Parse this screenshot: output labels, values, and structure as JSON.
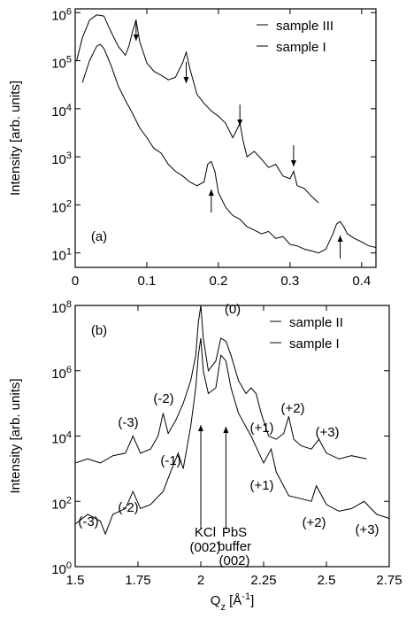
{
  "chart_data": [
    {
      "type": "line",
      "ylabel": "Intensity [arb. units]",
      "log_y": true,
      "legend": "top-right",
      "xlim": [
        0,
        0.42
      ],
      "xticks": [
        0,
        0.1,
        0.2,
        0.3,
        0.4
      ],
      "ylim": [
        5,
        1200000
      ],
      "yticks": [
        {
          "value": 10,
          "label": "10^1"
        },
        {
          "value": 100,
          "label": "10^2"
        },
        {
          "value": 1000,
          "label": "10^3"
        },
        {
          "value": 10000,
          "label": "10^4"
        },
        {
          "value": 100000,
          "label": "10^5"
        },
        {
          "value": 1000000,
          "label": "10^6"
        }
      ],
      "series": [
        {
          "name": "sample III",
          "color": "#000000",
          "x": [
            0.002,
            0.01,
            0.02,
            0.03,
            0.04,
            0.05,
            0.06,
            0.07,
            0.075,
            0.08,
            0.085,
            0.09,
            0.1,
            0.11,
            0.12,
            0.13,
            0.14,
            0.15,
            0.155,
            0.16,
            0.17,
            0.18,
            0.19,
            0.2,
            0.21,
            0.22,
            0.225,
            0.23,
            0.235,
            0.24,
            0.25,
            0.26,
            0.27,
            0.28,
            0.29,
            0.3,
            0.305,
            0.31,
            0.32,
            0.33,
            0.34
          ],
          "values": [
            100000,
            300000,
            700000,
            900000,
            850000,
            400000,
            200000,
            130000,
            200000,
            400000,
            700000,
            250000,
            90000,
            60000,
            50000,
            40000,
            45000,
            90000,
            150000,
            70000,
            20000,
            13000,
            9000,
            7000,
            5000,
            2500,
            3500,
            5000,
            2000,
            1000,
            1300,
            900,
            600,
            700,
            400,
            350,
            500,
            250,
            220,
            150,
            110
          ]
        },
        {
          "name": "sample I",
          "color": "#000000",
          "x": [
            0.01,
            0.02,
            0.03,
            0.035,
            0.04,
            0.05,
            0.06,
            0.07,
            0.08,
            0.09,
            0.1,
            0.11,
            0.12,
            0.13,
            0.14,
            0.15,
            0.16,
            0.17,
            0.18,
            0.185,
            0.19,
            0.195,
            0.2,
            0.21,
            0.22,
            0.23,
            0.24,
            0.25,
            0.26,
            0.27,
            0.28,
            0.29,
            0.3,
            0.31,
            0.32,
            0.33,
            0.34,
            0.35,
            0.36,
            0.365,
            0.37,
            0.375,
            0.38,
            0.39,
            0.4,
            0.41,
            0.42
          ],
          "values": [
            35000,
            100000,
            200000,
            220000,
            180000,
            80000,
            30000,
            15000,
            8000,
            4000,
            2500,
            1500,
            1200,
            700,
            500,
            400,
            300,
            250,
            300,
            700,
            800,
            500,
            180,
            90,
            60,
            50,
            35,
            30,
            25,
            28,
            20,
            22,
            15,
            14,
            12,
            11,
            10,
            12,
            25,
            40,
            45,
            35,
            25,
            20,
            17,
            14,
            13
          ]
        }
      ],
      "annotations": [
        "(a)"
      ]
    },
    {
      "type": "line",
      "xlabel": "Q_z [Å^-1]",
      "ylabel": "Intensity [arb. units]",
      "log_y": true,
      "legend": "top-right",
      "xlim": [
        1.5,
        2.75
      ],
      "xticks": [
        1.5,
        1.75,
        2,
        2.25,
        2.5,
        2.75
      ],
      "ylim": [
        1,
        100000000
      ],
      "yticks": [
        {
          "value": 1,
          "label": "10^0"
        },
        {
          "value": 100,
          "label": "10^2"
        },
        {
          "value": 10000,
          "label": "10^4"
        },
        {
          "value": 1000000,
          "label": "10^6"
        },
        {
          "value": 100000000,
          "label": "10^8"
        }
      ],
      "series": [
        {
          "name": "sample II",
          "color": "#000000",
          "x": [
            1.5,
            1.55,
            1.6,
            1.65,
            1.7,
            1.73,
            1.76,
            1.8,
            1.83,
            1.85,
            1.87,
            1.9,
            1.93,
            1.96,
            1.98,
            1.99,
            2.0,
            2.01,
            2.03,
            2.06,
            2.08,
            2.1,
            2.12,
            2.15,
            2.18,
            2.2,
            2.22,
            2.24,
            2.27,
            2.3,
            2.33,
            2.35,
            2.37,
            2.4,
            2.44,
            2.47,
            2.5,
            2.55,
            2.6,
            2.66
          ],
          "values": [
            1500,
            2000,
            1500,
            2500,
            3000,
            10000,
            3000,
            4000,
            10000,
            50000,
            12000,
            30000,
            100000,
            500000,
            3000000,
            30000000,
            100000000,
            10000000,
            1000000,
            2000000,
            10000000,
            8000000,
            3000000,
            500000,
            200000,
            300000,
            200000,
            50000,
            10000,
            8000,
            12000,
            40000,
            8000,
            5000,
            4000,
            8000,
            3000,
            2000,
            2500,
            2000
          ]
        },
        {
          "name": "sample I",
          "color": "#000000",
          "x": [
            1.5,
            1.55,
            1.6,
            1.62,
            1.65,
            1.7,
            1.73,
            1.76,
            1.8,
            1.85,
            1.88,
            1.91,
            1.93,
            1.96,
            1.98,
            1.99,
            2.0,
            2.01,
            2.03,
            2.06,
            2.08,
            2.1,
            2.12,
            2.15,
            2.2,
            2.25,
            2.28,
            2.3,
            2.35,
            2.4,
            2.44,
            2.46,
            2.5,
            2.55,
            2.6,
            2.65,
            2.7,
            2.75
          ],
          "values": [
            20,
            40,
            25,
            10,
            40,
            60,
            200,
            60,
            80,
            200,
            800,
            3000,
            1000,
            20000,
            300000,
            3000000,
            10000000,
            1000000,
            200000,
            300000,
            3000000,
            2000000,
            300000,
            50000,
            10000,
            1500,
            4000,
            800,
            150,
            120,
            100,
            300,
            80,
            50,
            60,
            100,
            40,
            30
          ]
        }
      ],
      "annotations": [
        "(b)",
        "(0)",
        "(-3)",
        "(-2)",
        "(+1)",
        "(+2)",
        "(+3)",
        "(-3)",
        "(-2)",
        "(-1)",
        "(+1)",
        "(+2)",
        "(+3)",
        "KCl",
        "(002)",
        "PbS",
        "buffer",
        "(002)"
      ]
    }
  ]
}
